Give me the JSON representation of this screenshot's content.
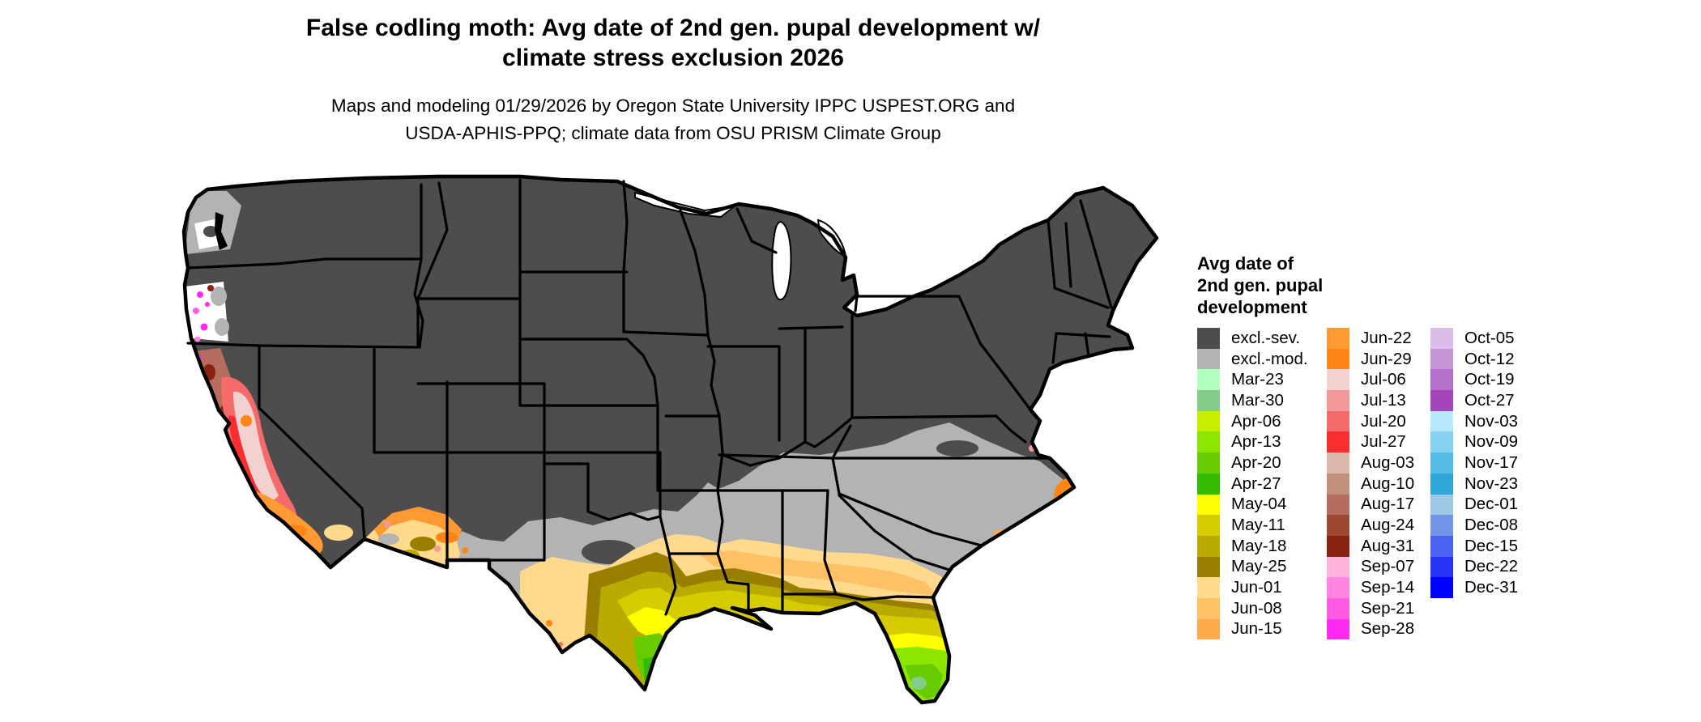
{
  "title": {
    "line1": "False codling moth: Avg date of 2nd gen. pupal development w/",
    "line2": "climate stress exclusion 2026"
  },
  "subtitle": {
    "line1": "Maps and modeling 01/29/2026 by Oregon State University IPPC USPEST.ORG and",
    "line2": "USDA-APHIS-PPQ; climate data from OSU PRISM Climate Group"
  },
  "legend": {
    "title_line1": "Avg date of",
    "title_line2": "2nd gen. pupal",
    "title_line3": "development",
    "columns": [
      {
        "items": [
          {
            "label": "excl.-sev.",
            "color_id": "excl_sev"
          },
          {
            "label": "excl.-mod.",
            "color_id": "excl_mod"
          },
          {
            "label": "Mar-23",
            "color_id": "mar23"
          },
          {
            "label": "Mar-30",
            "color_id": "mar30"
          },
          {
            "label": "Apr-06",
            "color_id": "apr06"
          },
          {
            "label": "Apr-13",
            "color_id": "apr13"
          },
          {
            "label": "Apr-20",
            "color_id": "apr20"
          },
          {
            "label": "Apr-27",
            "color_id": "apr27"
          },
          {
            "label": "May-04",
            "color_id": "may04"
          },
          {
            "label": "May-11",
            "color_id": "may11"
          },
          {
            "label": "May-18",
            "color_id": "may18"
          },
          {
            "label": "May-25",
            "color_id": "may25"
          },
          {
            "label": "Jun-01",
            "color_id": "jun01"
          },
          {
            "label": "Jun-08",
            "color_id": "jun08"
          },
          {
            "label": "Jun-15",
            "color_id": "jun15"
          }
        ]
      },
      {
        "items": [
          {
            "label": "Jun-22",
            "color_id": "jun22"
          },
          {
            "label": "Jun-29",
            "color_id": "jun29"
          },
          {
            "label": "Jul-06",
            "color_id": "jul06"
          },
          {
            "label": "Jul-13",
            "color_id": "jul13"
          },
          {
            "label": "Jul-20",
            "color_id": "jul20"
          },
          {
            "label": "Jul-27",
            "color_id": "jul27"
          },
          {
            "label": "Aug-03",
            "color_id": "aug03"
          },
          {
            "label": "Aug-10",
            "color_id": "aug10"
          },
          {
            "label": "Aug-17",
            "color_id": "aug17"
          },
          {
            "label": "Aug-24",
            "color_id": "aug24"
          },
          {
            "label": "Aug-31",
            "color_id": "aug31"
          },
          {
            "label": "Sep-07",
            "color_id": "sep07"
          },
          {
            "label": "Sep-14",
            "color_id": "sep14"
          },
          {
            "label": "Sep-21",
            "color_id": "sep21"
          },
          {
            "label": "Sep-28",
            "color_id": "sep28"
          }
        ]
      },
      {
        "items": [
          {
            "label": "Oct-05",
            "color_id": "oct05"
          },
          {
            "label": "Oct-12",
            "color_id": "oct12"
          },
          {
            "label": "Oct-19",
            "color_id": "oct19"
          },
          {
            "label": "Oct-27",
            "color_id": "oct27"
          },
          {
            "label": "Nov-03",
            "color_id": "nov03"
          },
          {
            "label": "Nov-09",
            "color_id": "nov09"
          },
          {
            "label": "Nov-17",
            "color_id": "nov17"
          },
          {
            "label": "Nov-23",
            "color_id": "nov23"
          },
          {
            "label": "Dec-01",
            "color_id": "dec01"
          },
          {
            "label": "Dec-08",
            "color_id": "dec08"
          },
          {
            "label": "Dec-15",
            "color_id": "dec15"
          },
          {
            "label": "Dec-22",
            "color_id": "dec22"
          },
          {
            "label": "Dec-31",
            "color_id": "dec31"
          }
        ]
      }
    ]
  },
  "colors": {
    "excl_sev": "#4D4D4D",
    "excl_mod": "#B3B3B3",
    "mar23": "#B3FFBD",
    "mar30": "#85CC8A",
    "apr06": "#C8EE00",
    "apr13": "#8CE600",
    "apr20": "#66CC00",
    "apr27": "#33BB00",
    "may04": "#FFFF00",
    "may11": "#D6CC00",
    "may18": "#BBAA00",
    "may25": "#997F00",
    "jun01": "#FFD98C",
    "jun08": "#FFC166",
    "jun15": "#FFA94D",
    "jun22": "#FF9933",
    "jun29": "#FF8514",
    "jul06": "#F2D1D1",
    "jul13": "#F29999",
    "jul20": "#F56B6B",
    "jul27": "#FA2E2E",
    "aug03": "#DDB8AC",
    "aug10": "#C4917F",
    "aug17": "#B56E5E",
    "aug24": "#9E4733",
    "aug31": "#8A2211",
    "sep07": "#FFB3D9",
    "sep14": "#FF85E0",
    "sep21": "#FF5CE6",
    "sep28": "#FF2BF0",
    "oct05": "#DCBCE8",
    "oct12": "#C794D6",
    "oct19": "#B571C9",
    "oct27": "#A346BC",
    "nov03": "#B8E8FC",
    "nov09": "#87D2F0",
    "nov17": "#57BCE3",
    "nov23": "#2FA7D9",
    "dec01": "#9EC7E3",
    "dec08": "#7494E8",
    "dec15": "#4A62F0",
    "dec22": "#2633F5",
    "dec31": "#0000FF",
    "border": "#000000",
    "water": "#FFFFFF"
  },
  "chart_data": {
    "type": "heatmap",
    "subtype": "choropleth-us-map",
    "title": "False codling moth: Avg date of 2nd gen. pupal development w/ climate stress exclusion 2026",
    "legend_title": "Avg date of 2nd gen. pupal development",
    "categories": [
      "excl.-sev.",
      "excl.-mod.",
      "Mar-23",
      "Mar-30",
      "Apr-06",
      "Apr-13",
      "Apr-20",
      "Apr-27",
      "May-04",
      "May-11",
      "May-18",
      "May-25",
      "Jun-01",
      "Jun-08",
      "Jun-15",
      "Jun-22",
      "Jun-29",
      "Jul-06",
      "Jul-13",
      "Jul-20",
      "Jul-27",
      "Aug-03",
      "Aug-10",
      "Aug-17",
      "Aug-24",
      "Aug-31",
      "Sep-07",
      "Sep-14",
      "Sep-21",
      "Sep-28",
      "Oct-05",
      "Oct-12",
      "Oct-19",
      "Oct-27",
      "Nov-03",
      "Nov-09",
      "Nov-17",
      "Nov-23",
      "Dec-01",
      "Dec-08",
      "Dec-15",
      "Dec-22",
      "Dec-31"
    ],
    "legend_position": "right"
  }
}
